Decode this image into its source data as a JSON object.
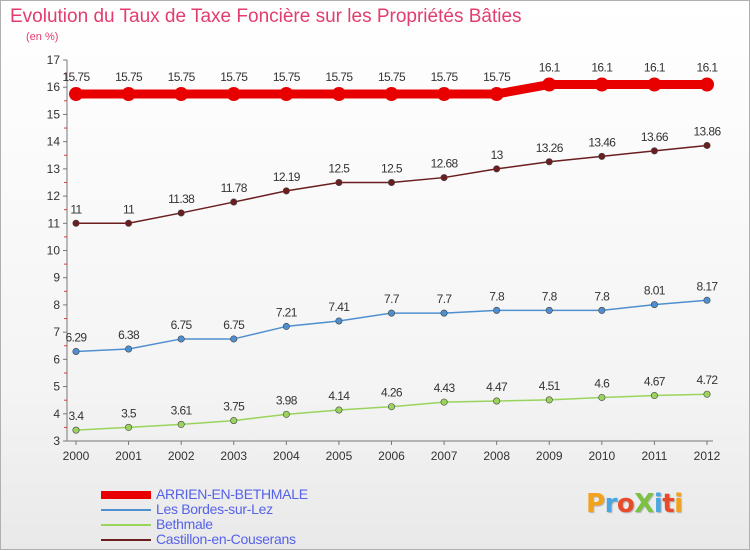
{
  "title": "Evolution du Taux de Taxe Foncière sur les Propriétés Bâties",
  "subtitle": "(en %)",
  "logo": {
    "text": "ProXiti",
    "colors": [
      "#f2a21c",
      "#4aa6e0",
      "#e84a2c",
      "#7cc242",
      "#4aa6e0",
      "#e84a2c",
      "#f2a21c"
    ]
  },
  "chart_data": {
    "type": "line",
    "title": "Evolution du Taux de Taxe Foncière sur les Propriétés Bâties",
    "ylabel": "(en %)",
    "xlabel": "",
    "x": [
      "2000",
      "2001",
      "2002",
      "2003",
      "2004",
      "2005",
      "2006",
      "2007",
      "2008",
      "2009",
      "2010",
      "2011",
      "2012"
    ],
    "ylim": [
      3,
      17
    ],
    "yticks": [
      3,
      4,
      5,
      6,
      7,
      8,
      9,
      10,
      11,
      12,
      13,
      14,
      15,
      16,
      17
    ],
    "grid": false,
    "legend_position": "bottom",
    "series": [
      {
        "name": "ARRIEN-EN-BETHMALE",
        "color": "#e80000",
        "values": [
          15.75,
          15.75,
          15.75,
          15.75,
          15.75,
          15.75,
          15.75,
          15.75,
          15.75,
          16.1,
          16.1,
          16.1,
          16.1
        ],
        "labels": [
          "15.75",
          "15.75",
          "15.75",
          "15.75",
          "15.75",
          "15.75",
          "15.75",
          "15.75",
          "15.75",
          "16.1",
          "16.1",
          "16.1",
          "16.1"
        ]
      },
      {
        "name": "Castillon-en-Couserans",
        "color": "#6b1d20",
        "values": [
          11,
          11,
          11.38,
          11.78,
          12.19,
          12.5,
          12.5,
          12.68,
          13,
          13.26,
          13.46,
          13.66,
          13.86
        ],
        "labels": [
          "11",
          "11",
          "11.38",
          "11.78",
          "12.19",
          "12.5",
          "12.5",
          "12.68",
          "13",
          "13.26",
          "13.46",
          "13.66",
          "13.86"
        ]
      },
      {
        "name": "Les Bordes-sur-Lez",
        "color": "#4f8fcf",
        "values": [
          6.29,
          6.38,
          6.75,
          6.75,
          7.21,
          7.41,
          7.7,
          7.7,
          7.8,
          7.8,
          7.8,
          8.01,
          8.17
        ],
        "labels": [
          "6.29",
          "6.38",
          "6.75",
          "6.75",
          "7.21",
          "7.41",
          "7.7",
          "7.7",
          "7.8",
          "7.8",
          "7.8",
          "8.01",
          "8.17"
        ]
      },
      {
        "name": "Bethmale",
        "color": "#9ad45c",
        "values": [
          3.4,
          3.5,
          3.61,
          3.75,
          3.98,
          4.14,
          4.26,
          4.43,
          4.47,
          4.51,
          4.6,
          4.67,
          4.72
        ],
        "labels": [
          "3.4",
          "3.5",
          "3.61",
          "3.75",
          "3.98",
          "4.14",
          "4.26",
          "4.43",
          "4.47",
          "4.51",
          "4.6",
          "4.67",
          "4.72"
        ]
      }
    ],
    "legend": [
      {
        "name": "ARRIEN-EN-BETHMALE",
        "color": "#e80000",
        "thick": true
      },
      {
        "name": "Les Bordes-sur-Lez",
        "color": "#4f8fcf",
        "thick": false
      },
      {
        "name": "Bethmale",
        "color": "#9ad45c",
        "thick": false
      },
      {
        "name": "Castillon-en-Couserans",
        "color": "#6b1d20",
        "thick": false
      }
    ]
  }
}
